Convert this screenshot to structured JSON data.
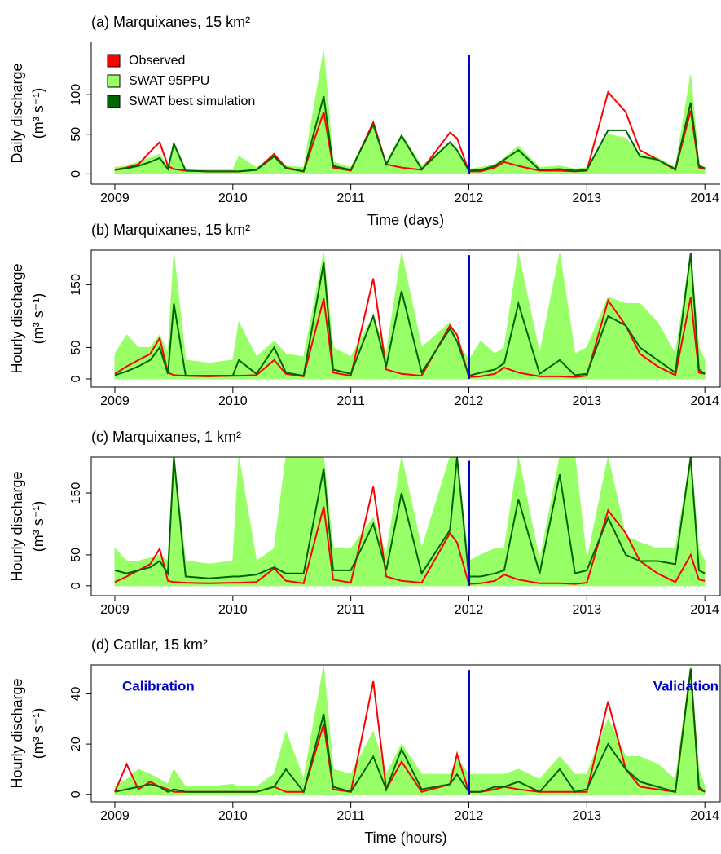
{
  "chart_data": [
    {
      "type": "line",
      "title": "(a) Marquixanes, 15 km²",
      "ylabel": [
        "Daily discharge",
        "(m³ s⁻¹)"
      ],
      "xlabel": "Time (days)",
      "legend": "top-left",
      "box": false,
      "x": [
        2009.0,
        2009.1,
        2009.2,
        2009.3,
        2009.38,
        2009.45,
        2009.5,
        2009.6,
        2009.8,
        2010.0,
        2010.05,
        2010.2,
        2010.35,
        2010.45,
        2010.6,
        2010.77,
        2010.85,
        2011.0,
        2011.19,
        2011.3,
        2011.43,
        2011.6,
        2011.84,
        2011.9,
        2012.0,
        2012.1,
        2012.22,
        2012.3,
        2012.42,
        2012.6,
        2012.77,
        2012.9,
        2013.0,
        2013.18,
        2013.33,
        2013.45,
        2013.6,
        2013.75,
        2013.88,
        2013.95,
        2014.0
      ],
      "xlim": [
        2008.8,
        2014.13
      ],
      "xticks": [
        2009,
        2010,
        2011,
        2012,
        2013,
        2014
      ],
      "ylim": [
        -13,
        166
      ],
      "yticks": [
        0,
        50,
        100
      ],
      "split": {
        "x": 2012,
        "top": 150,
        "color": "#0000cc"
      },
      "series": [
        {
          "name": "Observed",
          "color": "#ff0000",
          "values": [
            5,
            8,
            12,
            28,
            40,
            10,
            6,
            4,
            3,
            3,
            3,
            5,
            25,
            8,
            3,
            78,
            8,
            4,
            65,
            12,
            8,
            5,
            52,
            45,
            3,
            3,
            8,
            15,
            10,
            4,
            4,
            3,
            4,
            103,
            78,
            30,
            18,
            5,
            80,
            8,
            6
          ]
        },
        {
          "name": "SWAT 95PPU",
          "color": "#99ff66",
          "fill": true,
          "values": [
            8,
            10,
            15,
            20,
            25,
            8,
            40,
            6,
            5,
            5,
            22,
            8,
            22,
            10,
            8,
            155,
            15,
            8,
            60,
            15,
            50,
            10,
            40,
            30,
            6,
            8,
            12,
            20,
            35,
            8,
            10,
            6,
            8,
            50,
            45,
            25,
            20,
            8,
            125,
            12,
            8
          ]
        },
        {
          "name": "SWAT best simulation",
          "color": "#006400",
          "values": [
            5,
            7,
            10,
            15,
            20,
            6,
            38,
            4,
            3,
            3,
            3,
            5,
            22,
            7,
            3,
            98,
            10,
            5,
            62,
            12,
            48,
            6,
            40,
            30,
            4,
            5,
            10,
            18,
            30,
            5,
            6,
            4,
            5,
            55,
            55,
            22,
            18,
            6,
            90,
            10,
            7
          ]
        }
      ]
    },
    {
      "type": "line",
      "title": "(b) Marquixanes, 15 km²",
      "ylabel": [
        "Hourly discharge",
        "(m³ s⁻¹)"
      ],
      "box": true,
      "x": [
        2009.0,
        2009.1,
        2009.2,
        2009.3,
        2009.38,
        2009.45,
        2009.5,
        2009.6,
        2009.8,
        2010.0,
        2010.05,
        2010.2,
        2010.35,
        2010.45,
        2010.6,
        2010.77,
        2010.85,
        2011.0,
        2011.19,
        2011.3,
        2011.43,
        2011.6,
        2011.84,
        2011.9,
        2012.0,
        2012.1,
        2012.22,
        2012.3,
        2012.42,
        2012.6,
        2012.77,
        2012.9,
        2013.0,
        2013.18,
        2013.33,
        2013.45,
        2013.6,
        2013.75,
        2013.88,
        2013.95,
        2014.0
      ],
      "xlim": [
        2008.8,
        2014.13
      ],
      "xticks": [
        2009,
        2010,
        2011,
        2012,
        2013,
        2014
      ],
      "ylim": [
        -13,
        205
      ],
      "yticks": [
        0,
        50,
        150
      ],
      "split": {
        "x": 2012,
        "top": 197,
        "color": "#0000cc"
      },
      "series": [
        {
          "color": "#ff0000",
          "values": [
            8,
            20,
            30,
            40,
            65,
            10,
            6,
            5,
            4,
            5,
            5,
            6,
            30,
            8,
            4,
            128,
            10,
            5,
            160,
            15,
            8,
            5,
            85,
            70,
            3,
            4,
            8,
            18,
            10,
            4,
            4,
            3,
            5,
            125,
            85,
            40,
            20,
            6,
            130,
            10,
            8
          ]
        },
        {
          "color": "#99ff66",
          "fill": true,
          "values": [
            40,
            70,
            50,
            50,
            70,
            40,
            200,
            30,
            25,
            30,
            90,
            35,
            60,
            40,
            35,
            200,
            50,
            35,
            100,
            40,
            200,
            50,
            90,
            60,
            30,
            60,
            40,
            50,
            200,
            40,
            200,
            40,
            50,
            130,
            120,
            120,
            90,
            40,
            200,
            50,
            30
          ]
        },
        {
          "color": "#006400",
          "values": [
            6,
            12,
            20,
            30,
            50,
            8,
            120,
            5,
            5,
            5,
            30,
            8,
            50,
            10,
            5,
            185,
            15,
            8,
            100,
            20,
            140,
            10,
            80,
            60,
            5,
            10,
            15,
            25,
            120,
            8,
            30,
            6,
            8,
            100,
            85,
            50,
            30,
            10,
            200,
            15,
            8
          ]
        }
      ]
    },
    {
      "type": "line",
      "title": "(c) Marquixanes, 1 km²",
      "ylabel": [
        "Hourly discharge",
        "(m³ s⁻¹)"
      ],
      "box": true,
      "x": [
        2009.0,
        2009.1,
        2009.2,
        2009.3,
        2009.38,
        2009.45,
        2009.5,
        2009.6,
        2009.8,
        2010.0,
        2010.05,
        2010.2,
        2010.35,
        2010.45,
        2010.6,
        2010.77,
        2010.85,
        2011.0,
        2011.19,
        2011.3,
        2011.43,
        2011.6,
        2011.84,
        2011.9,
        2012.0,
        2012.1,
        2012.22,
        2012.3,
        2012.42,
        2012.6,
        2012.77,
        2012.9,
        2013.0,
        2013.18,
        2013.33,
        2013.45,
        2013.6,
        2013.75,
        2013.88,
        2013.95,
        2014.0
      ],
      "xlim": [
        2008.8,
        2014.13
      ],
      "xticks": [
        2009,
        2010,
        2011,
        2012,
        2013,
        2014
      ],
      "ylim": [
        -16,
        208
      ],
      "yticks": [
        0,
        50,
        150
      ],
      "split": {
        "x": 2012,
        "top": 202,
        "color": "#0000cc"
      },
      "series": [
        {
          "color": "#ff0000",
          "values": [
            6,
            15,
            25,
            35,
            60,
            8,
            6,
            5,
            4,
            5,
            5,
            6,
            28,
            8,
            4,
            128,
            10,
            5,
            160,
            15,
            8,
            5,
            85,
            70,
            3,
            4,
            8,
            18,
            10,
            4,
            4,
            3,
            5,
            122,
            85,
            40,
            20,
            6,
            50,
            10,
            8
          ]
        },
        {
          "color": "#99ff66",
          "fill": true,
          "values": [
            60,
            40,
            40,
            45,
            50,
            40,
            208,
            40,
            35,
            40,
            208,
            40,
            60,
            208,
            208,
            208,
            60,
            60,
            110,
            50,
            208,
            60,
            208,
            208,
            40,
            50,
            60,
            60,
            208,
            40,
            208,
            208,
            40,
            208,
            80,
            70,
            60,
            60,
            208,
            60,
            40
          ]
        },
        {
          "color": "#006400",
          "values": [
            25,
            20,
            25,
            30,
            40,
            20,
            208,
            15,
            12,
            15,
            15,
            18,
            30,
            20,
            20,
            190,
            25,
            25,
            100,
            25,
            150,
            20,
            90,
            208,
            15,
            15,
            20,
            25,
            140,
            20,
            180,
            20,
            25,
            110,
            50,
            40,
            40,
            35,
            208,
            25,
            20
          ]
        }
      ]
    },
    {
      "type": "line",
      "title": "(d) Catllar, 15 km²",
      "ylabel": [
        "Hourly discharge",
        "(m³ s⁻¹)"
      ],
      "xlabel": "Time (hours)",
      "box": true,
      "annotations": [
        "Calibration",
        "Validation"
      ],
      "annotation_color": "#0000cc",
      "x": [
        2009.0,
        2009.1,
        2009.2,
        2009.3,
        2009.38,
        2009.45,
        2009.5,
        2009.6,
        2009.8,
        2010.0,
        2010.05,
        2010.2,
        2010.35,
        2010.45,
        2010.6,
        2010.77,
        2010.85,
        2011.0,
        2011.19,
        2011.3,
        2011.43,
        2011.6,
        2011.84,
        2011.9,
        2012.0,
        2012.1,
        2012.22,
        2012.3,
        2012.42,
        2012.6,
        2012.77,
        2012.9,
        2013.0,
        2013.18,
        2013.33,
        2013.45,
        2013.6,
        2013.75,
        2013.88,
        2013.95,
        2014.0
      ],
      "xlim": [
        2008.8,
        2014.13
      ],
      "xticks": [
        2009,
        2010,
        2011,
        2012,
        2013,
        2014
      ],
      "ylim": [
        -3,
        51.5
      ],
      "yticks": [
        0,
        20,
        40
      ],
      "split": {
        "x": 2012,
        "top": 49.5,
        "color": "#0000cc"
      },
      "series": [
        {
          "color": "#ff0000",
          "values": [
            1,
            12,
            2,
            5,
            3,
            2,
            1,
            1,
            1,
            1,
            1,
            1,
            3,
            1,
            1,
            28,
            2,
            1,
            45,
            2,
            13,
            1,
            4,
            16,
            1,
            1,
            2,
            3,
            2,
            1,
            1,
            1,
            1,
            37,
            10,
            3,
            2,
            1,
            50,
            2,
            1
          ]
        },
        {
          "color": "#99ff66",
          "fill": true,
          "values": [
            3,
            6,
            10,
            8,
            6,
            4,
            10,
            3,
            3,
            4,
            3,
            3,
            8,
            25,
            6,
            51,
            10,
            8,
            25,
            8,
            20,
            8,
            8,
            14,
            8,
            8,
            8,
            8,
            10,
            6,
            15,
            8,
            8,
            30,
            15,
            15,
            12,
            6,
            51,
            10,
            3
          ]
        },
        {
          "color": "#006400",
          "values": [
            1,
            2,
            3,
            4,
            3,
            1,
            2,
            1,
            1,
            1,
            1,
            1,
            3,
            10,
            1,
            32,
            3,
            1,
            15,
            2,
            18,
            2,
            4,
            8,
            1,
            1,
            3,
            3,
            5,
            1,
            10,
            1,
            2,
            20,
            10,
            5,
            3,
            1,
            50,
            3,
            1
          ]
        }
      ]
    }
  ]
}
